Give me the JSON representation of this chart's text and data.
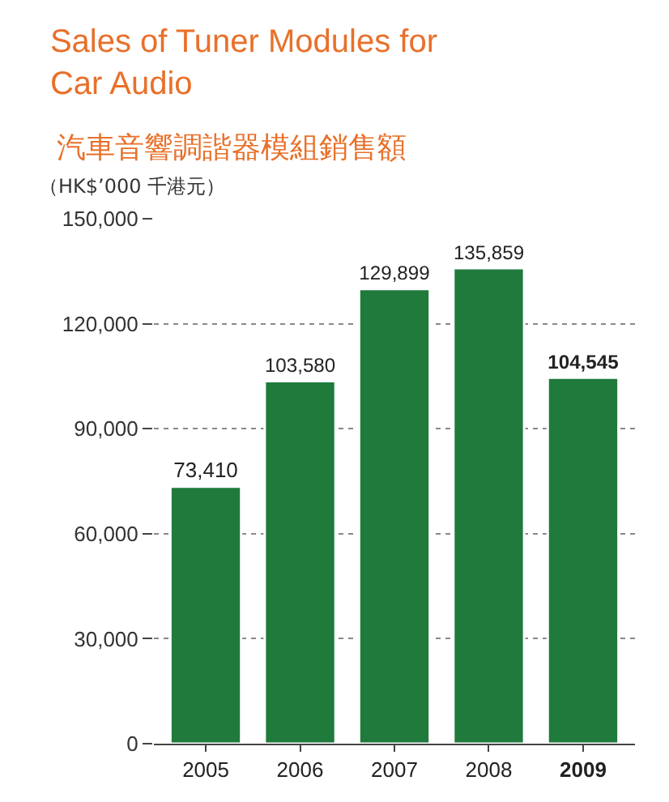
{
  "chart_data": {
    "type": "bar",
    "title": "Sales of Tuner Modules for\nCar Audio",
    "subtitle": "汽車音響調諧器模組銷售額",
    "ylabel": "（HK$’000 千港元）",
    "categories": [
      "2005",
      "2006",
      "2007",
      "2008",
      "2009"
    ],
    "values": [
      73410,
      103580,
      129899,
      135859,
      104545
    ],
    "color": "#1f7a3c",
    "ylim": [
      0,
      150000
    ],
    "yticks": [
      {
        "value": 0,
        "label": "0"
      },
      {
        "value": 30000,
        "label": "30,000"
      },
      {
        "value": 60000,
        "label": "60,000"
      },
      {
        "value": 90000,
        "label": "90,000"
      },
      {
        "value": 120000,
        "label": "120,000"
      },
      {
        "value": 150000,
        "label": "150,000"
      }
    ],
    "value_labels": [
      "73,410",
      "103,580",
      "129,899",
      "135,859",
      "104,545"
    ],
    "grid": "y"
  }
}
